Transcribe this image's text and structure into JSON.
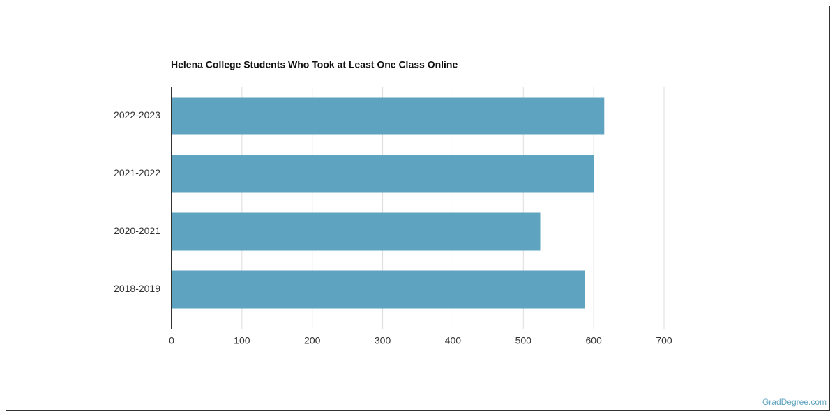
{
  "chart_data": {
    "type": "bar",
    "orientation": "horizontal",
    "title": "Helena College Students Who Took at Least One Class Online",
    "categories": [
      "2022-2023",
      "2021-2022",
      "2020-2021",
      "2018-2019"
    ],
    "values": [
      615,
      600,
      524,
      587
    ],
    "color": "#5ea3bf",
    "xlim": [
      0,
      700
    ],
    "xticks": [
      0,
      100,
      200,
      300,
      400,
      500,
      600,
      700
    ],
    "grid": true
  },
  "watermark": "GradDegree.com"
}
